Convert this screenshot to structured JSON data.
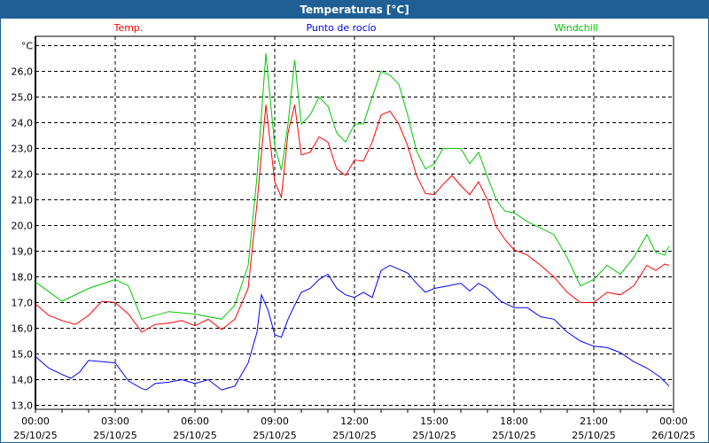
{
  "title": "Temperaturas [°C]",
  "colors": {
    "header": "#1f5f96",
    "temp": "#ff0000",
    "dew": "#0000ff",
    "windchill": "#00c800"
  },
  "chart_data": {
    "type": "line",
    "title": "Temperaturas [°C]",
    "ylabel": "°C",
    "ylim": [
      13,
      27
    ],
    "yticks": [
      "13,0",
      "14,0",
      "15,0",
      "16,0",
      "17,0",
      "18,0",
      "19,0",
      "20,0",
      "21,0",
      "22,0",
      "23,0",
      "24,0",
      "25,0",
      "26,0"
    ],
    "xlim": [
      "25/10/25 00:00",
      "26/10/25 00:00"
    ],
    "xticks": [
      {
        "time": "00:00",
        "date": "25/10/25"
      },
      {
        "time": "03:00",
        "date": "25/10/25"
      },
      {
        "time": "06:00",
        "date": "25/10/25"
      },
      {
        "time": "09:00",
        "date": "25/10/25"
      },
      {
        "time": "12:00",
        "date": "25/10/25"
      },
      {
        "time": "15:00",
        "date": "25/10/25"
      },
      {
        "time": "18:00",
        "date": "25/10/25"
      },
      {
        "time": "21:00",
        "date": "25/10/25"
      },
      {
        "time": "00:00",
        "date": "26/10/25"
      }
    ],
    "grid": true,
    "legend_placement": "top",
    "series": [
      {
        "name": "Temp.",
        "color": "#ff0000",
        "points": [
          [
            "00:00",
            16.95
          ],
          [
            "00:30",
            16.5
          ],
          [
            "01:00",
            16.3
          ],
          [
            "01:30",
            16.15
          ],
          [
            "02:00",
            16.5
          ],
          [
            "02:30",
            17.05
          ],
          [
            "03:00",
            17.0
          ],
          [
            "03:30",
            16.55
          ],
          [
            "04:00",
            15.85
          ],
          [
            "04:30",
            16.15
          ],
          [
            "05:00",
            16.2
          ],
          [
            "05:30",
            16.3
          ],
          [
            "06:00",
            16.1
          ],
          [
            "06:30",
            16.35
          ],
          [
            "07:00",
            15.95
          ],
          [
            "07:30",
            16.35
          ],
          [
            "08:00",
            17.55
          ],
          [
            "08:20",
            20.85
          ],
          [
            "08:40",
            24.7
          ],
          [
            "09:00",
            21.7
          ],
          [
            "09:15",
            21.1
          ],
          [
            "09:30",
            23.6
          ],
          [
            "09:45",
            24.7
          ],
          [
            "10:00",
            22.75
          ],
          [
            "10:20",
            22.85
          ],
          [
            "10:40",
            23.45
          ],
          [
            "11:00",
            23.25
          ],
          [
            "11:20",
            22.2
          ],
          [
            "11:40",
            21.95
          ],
          [
            "12:00",
            22.55
          ],
          [
            "12:20",
            22.5
          ],
          [
            "12:40",
            23.25
          ],
          [
            "13:00",
            24.3
          ],
          [
            "13:20",
            24.45
          ],
          [
            "13:40",
            23.95
          ],
          [
            "14:00",
            23.1
          ],
          [
            "14:20",
            21.95
          ],
          [
            "14:40",
            21.25
          ],
          [
            "15:00",
            21.2
          ],
          [
            "15:20",
            21.6
          ],
          [
            "15:40",
            21.95
          ],
          [
            "16:00",
            21.55
          ],
          [
            "16:20",
            21.2
          ],
          [
            "16:40",
            21.7
          ],
          [
            "17:00",
            21.0
          ],
          [
            "17:20",
            19.95
          ],
          [
            "17:40",
            19.45
          ],
          [
            "18:00",
            19.05
          ],
          [
            "18:30",
            18.85
          ],
          [
            "19:00",
            18.45
          ],
          [
            "19:30",
            18.0
          ],
          [
            "20:00",
            17.4
          ],
          [
            "20:30",
            17.0
          ],
          [
            "21:00",
            17.0
          ],
          [
            "21:30",
            17.4
          ],
          [
            "22:00",
            17.3
          ],
          [
            "22:30",
            17.65
          ],
          [
            "23:00",
            18.45
          ],
          [
            "23:20",
            18.25
          ],
          [
            "23:40",
            18.5
          ],
          [
            "23:50",
            18.45
          ]
        ]
      },
      {
        "name": "Punto de rocío",
        "color": "#0000ff",
        "points": [
          [
            "00:00",
            14.9
          ],
          [
            "00:30",
            14.45
          ],
          [
            "01:00",
            14.2
          ],
          [
            "01:20",
            14.05
          ],
          [
            "01:40",
            14.3
          ],
          [
            "02:00",
            14.75
          ],
          [
            "03:00",
            14.65
          ],
          [
            "03:30",
            13.95
          ],
          [
            "04:00",
            13.65
          ],
          [
            "04:10",
            13.6
          ],
          [
            "04:30",
            13.85
          ],
          [
            "05:00",
            13.9
          ],
          [
            "05:30",
            14.0
          ],
          [
            "06:00",
            13.85
          ],
          [
            "06:30",
            14.0
          ],
          [
            "07:00",
            13.6
          ],
          [
            "07:30",
            13.75
          ],
          [
            "08:00",
            14.65
          ],
          [
            "08:20",
            15.85
          ],
          [
            "08:30",
            17.3
          ],
          [
            "08:45",
            16.7
          ],
          [
            "09:00",
            15.75
          ],
          [
            "09:15",
            15.65
          ],
          [
            "09:30",
            16.35
          ],
          [
            "09:45",
            16.9
          ],
          [
            "10:00",
            17.4
          ],
          [
            "10:20",
            17.55
          ],
          [
            "10:40",
            17.9
          ],
          [
            "11:00",
            18.1
          ],
          [
            "11:20",
            17.55
          ],
          [
            "11:40",
            17.3
          ],
          [
            "12:00",
            17.2
          ],
          [
            "12:20",
            17.4
          ],
          [
            "12:40",
            17.2
          ],
          [
            "13:00",
            18.25
          ],
          [
            "13:20",
            18.45
          ],
          [
            "13:40",
            18.3
          ],
          [
            "14:00",
            18.15
          ],
          [
            "14:20",
            17.75
          ],
          [
            "14:40",
            17.4
          ],
          [
            "15:00",
            17.55
          ],
          [
            "15:30",
            17.65
          ],
          [
            "16:00",
            17.75
          ],
          [
            "16:20",
            17.45
          ],
          [
            "16:40",
            17.75
          ],
          [
            "17:00",
            17.55
          ],
          [
            "17:30",
            17.05
          ],
          [
            "18:00",
            16.8
          ],
          [
            "18:30",
            16.8
          ],
          [
            "19:00",
            16.45
          ],
          [
            "19:30",
            16.35
          ],
          [
            "20:00",
            15.85
          ],
          [
            "20:30",
            15.5
          ],
          [
            "21:00",
            15.3
          ],
          [
            "21:30",
            15.25
          ],
          [
            "22:00",
            15.05
          ],
          [
            "22:30",
            14.7
          ],
          [
            "23:00",
            14.45
          ],
          [
            "23:30",
            14.1
          ],
          [
            "23:50",
            13.75
          ]
        ]
      },
      {
        "name": "Windchill",
        "color": "#00c800",
        "points": [
          [
            "00:00",
            17.8
          ],
          [
            "01:00",
            17.05
          ],
          [
            "02:00",
            17.55
          ],
          [
            "03:00",
            17.9
          ],
          [
            "03:30",
            17.65
          ],
          [
            "04:00",
            16.35
          ],
          [
            "05:00",
            16.65
          ],
          [
            "06:00",
            16.55
          ],
          [
            "07:00",
            16.35
          ],
          [
            "07:30",
            16.9
          ],
          [
            "08:00",
            18.45
          ],
          [
            "08:20",
            21.9
          ],
          [
            "08:40",
            26.7
          ],
          [
            "09:00",
            23.1
          ],
          [
            "09:15",
            22.15
          ],
          [
            "09:30",
            23.95
          ],
          [
            "09:45",
            26.45
          ],
          [
            "10:00",
            23.95
          ],
          [
            "10:20",
            24.3
          ],
          [
            "10:40",
            25.0
          ],
          [
            "11:00",
            24.65
          ],
          [
            "11:20",
            23.6
          ],
          [
            "11:40",
            23.25
          ],
          [
            "12:00",
            23.95
          ],
          [
            "12:20",
            23.95
          ],
          [
            "12:40",
            25.0
          ],
          [
            "13:00",
            26.0
          ],
          [
            "13:20",
            25.85
          ],
          [
            "13:40",
            25.5
          ],
          [
            "14:00",
            24.3
          ],
          [
            "14:20",
            22.9
          ],
          [
            "14:40",
            22.2
          ],
          [
            "15:00",
            22.4
          ],
          [
            "15:20",
            23.0
          ],
          [
            "15:40",
            23.0
          ],
          [
            "16:00",
            23.0
          ],
          [
            "16:20",
            22.4
          ],
          [
            "16:40",
            22.85
          ],
          [
            "17:00",
            21.9
          ],
          [
            "17:20",
            21.0
          ],
          [
            "17:40",
            20.55
          ],
          [
            "18:00",
            20.5
          ],
          [
            "18:30",
            20.15
          ],
          [
            "19:00",
            19.9
          ],
          [
            "19:30",
            19.65
          ],
          [
            "20:00",
            18.75
          ],
          [
            "20:30",
            17.65
          ],
          [
            "21:00",
            17.9
          ],
          [
            "21:30",
            18.45
          ],
          [
            "22:00",
            18.1
          ],
          [
            "22:30",
            18.75
          ],
          [
            "23:00",
            19.65
          ],
          [
            "23:20",
            18.95
          ],
          [
            "23:40",
            18.85
          ],
          [
            "23:50",
            19.2
          ]
        ]
      }
    ]
  }
}
